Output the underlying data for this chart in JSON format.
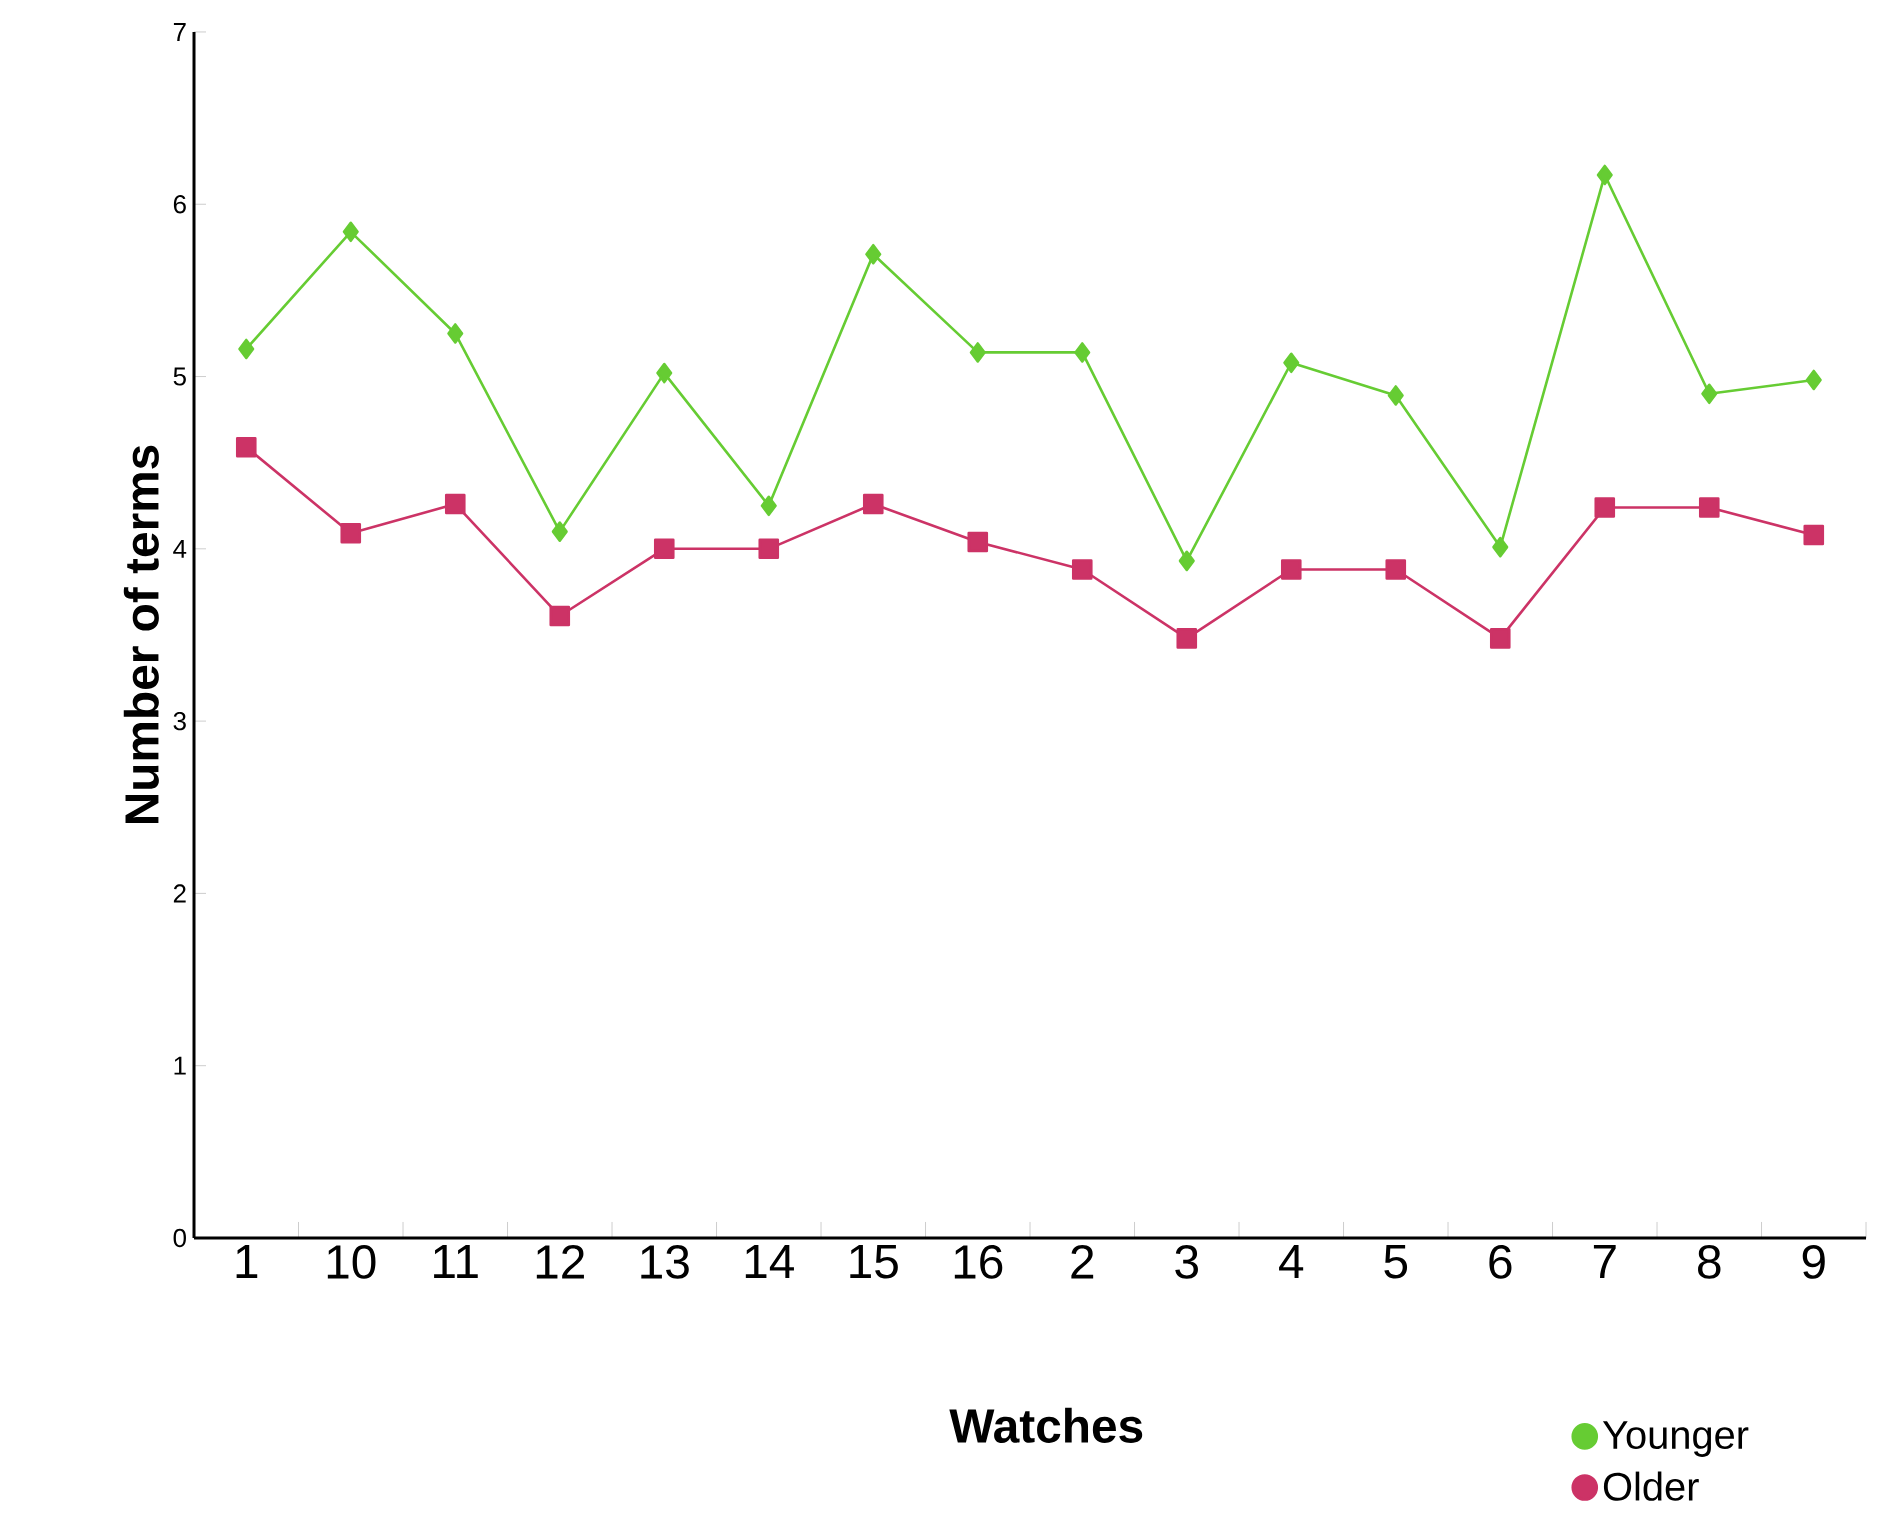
{
  "chart_data": {
    "type": "line",
    "xlabel": "Watches",
    "ylabel": "Number of terms",
    "categories": [
      "1",
      "10",
      "11",
      "12",
      "13",
      "14",
      "15",
      "16",
      "2",
      "3",
      "4",
      "5",
      "6",
      "7",
      "8",
      "9"
    ],
    "series": [
      {
        "name": "Younger",
        "color": "#66cc33",
        "marker": "diamond",
        "values": [
          5.16,
          5.84,
          5.25,
          4.1,
          5.02,
          4.25,
          5.71,
          5.14,
          5.14,
          3.93,
          5.08,
          4.89,
          4.01,
          6.17,
          4.9,
          4.98
        ]
      },
      {
        "name": "Older",
        "color": "#cc3366",
        "marker": "square",
        "values": [
          4.59,
          4.09,
          4.26,
          3.61,
          4.0,
          4.0,
          4.26,
          4.04,
          3.88,
          3.48,
          3.88,
          3.88,
          3.48,
          4.24,
          4.24,
          4.08
        ]
      }
    ],
    "ylim": [
      0,
      7
    ],
    "yticks": [
      0,
      1,
      2,
      3,
      4,
      5,
      6,
      7
    ],
    "legend": "bottom right"
  }
}
